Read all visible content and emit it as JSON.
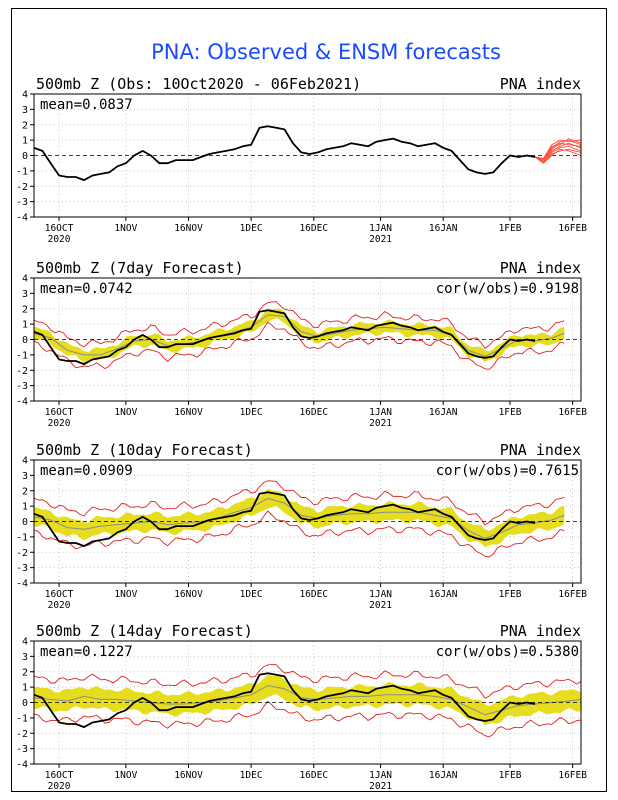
{
  "figure_title": "PNA: Observed & ENSM forecasts",
  "colors": {
    "title": "#1a4cff",
    "observed": "#000000",
    "ensemble_band": "#e6dd1e",
    "ensemble_mean": "#8c8c8c",
    "spread_lines": "#e02020",
    "members": "#ff4a3a",
    "grid": "#b0b0b0"
  },
  "chart_data": [
    {
      "type": "line",
      "title_left": "500mb Z (Obs: 10Oct2020 - 06Feb2021)",
      "title_right": "PNA index",
      "stat_left": "mean=0.0837",
      "stat_right": "",
      "ylim": [
        -4,
        4
      ],
      "yticks": [
        -4,
        -3,
        -2,
        -1,
        0,
        1,
        2,
        3,
        4
      ],
      "x_range_days": [
        0,
        131
      ],
      "xticks": [
        {
          "label": "16OCT",
          "sub": "2020",
          "day": 6
        },
        {
          "label": "1NOV",
          "sub": "",
          "day": 22
        },
        {
          "label": "16NOV",
          "sub": "",
          "day": 37
        },
        {
          "label": "1DEC",
          "sub": "",
          "day": 52
        },
        {
          "label": "16DEC",
          "sub": "",
          "day": 67
        },
        {
          "label": "1JAN",
          "sub": "2021",
          "day": 83
        },
        {
          "label": "16JAN",
          "sub": "",
          "day": 98
        },
        {
          "label": "1FEB",
          "sub": "",
          "day": 114
        },
        {
          "label": "16FEB",
          "sub": "",
          "day": 129
        }
      ],
      "grid": true,
      "series": [
        {
          "role": "observed",
          "values": [
            [
              0,
              0.5
            ],
            [
              2,
              0.3
            ],
            [
              4,
              -0.5
            ],
            [
              6,
              -1.3
            ],
            [
              8,
              -1.4
            ],
            [
              10,
              -1.4
            ],
            [
              12,
              -1.6
            ],
            [
              14,
              -1.3
            ],
            [
              16,
              -1.2
            ],
            [
              18,
              -1.1
            ],
            [
              20,
              -0.7
            ],
            [
              22,
              -0.5
            ],
            [
              24,
              0.0
            ],
            [
              26,
              0.3
            ],
            [
              28,
              0.0
            ],
            [
              30,
              -0.5
            ],
            [
              32,
              -0.5
            ],
            [
              34,
              -0.3
            ],
            [
              36,
              -0.3
            ],
            [
              38,
              -0.3
            ],
            [
              40,
              -0.1
            ],
            [
              42,
              0.1
            ],
            [
              44,
              0.2
            ],
            [
              46,
              0.3
            ],
            [
              48,
              0.4
            ],
            [
              50,
              0.6
            ],
            [
              52,
              0.7
            ],
            [
              54,
              1.8
            ],
            [
              56,
              1.9
            ],
            [
              58,
              1.8
            ],
            [
              60,
              1.7
            ],
            [
              62,
              0.8
            ],
            [
              64,
              0.2
            ],
            [
              66,
              0.1
            ],
            [
              68,
              0.2
            ],
            [
              70,
              0.4
            ],
            [
              72,
              0.5
            ],
            [
              74,
              0.6
            ],
            [
              76,
              0.8
            ],
            [
              78,
              0.7
            ],
            [
              80,
              0.6
            ],
            [
              82,
              0.9
            ],
            [
              84,
              1.0
            ],
            [
              86,
              1.1
            ],
            [
              88,
              0.9
            ],
            [
              90,
              0.8
            ],
            [
              92,
              0.6
            ],
            [
              94,
              0.7
            ],
            [
              96,
              0.8
            ],
            [
              98,
              0.5
            ],
            [
              100,
              0.3
            ],
            [
              102,
              -0.3
            ],
            [
              104,
              -0.9
            ],
            [
              106,
              -1.1
            ],
            [
              108,
              -1.2
            ],
            [
              110,
              -1.1
            ],
            [
              112,
              -0.5
            ],
            [
              114,
              0.0
            ],
            [
              116,
              -0.1
            ],
            [
              118,
              0.0
            ],
            [
              120,
              -0.1
            ]
          ]
        },
        {
          "role": "members",
          "values": [
            [
              [
                120,
                -0.1
              ],
              [
                122,
                -0.4
              ],
              [
                124,
                0.3
              ],
              [
                126,
                0.6
              ],
              [
                128,
                0.8
              ],
              [
                131,
                0.5
              ]
            ],
            [
              [
                120,
                -0.1
              ],
              [
                122,
                -0.2
              ],
              [
                124,
                0.5
              ],
              [
                126,
                0.9
              ],
              [
                128,
                1.0
              ],
              [
                131,
                0.7
              ]
            ],
            [
              [
                120,
                -0.1
              ],
              [
                122,
                -0.5
              ],
              [
                124,
                0.1
              ],
              [
                126,
                0.3
              ],
              [
                128,
                0.4
              ],
              [
                131,
                0.2
              ]
            ],
            [
              [
                120,
                -0.1
              ],
              [
                122,
                -0.3
              ],
              [
                124,
                0.6
              ],
              [
                126,
                0.7
              ],
              [
                128,
                1.1
              ],
              [
                131,
                0.8
              ]
            ],
            [
              [
                120,
                -0.1
              ],
              [
                122,
                -0.4
              ],
              [
                124,
                0.2
              ],
              [
                126,
                0.5
              ],
              [
                128,
                0.6
              ],
              [
                131,
                0.3
              ]
            ],
            [
              [
                120,
                -0.1
              ],
              [
                122,
                -0.2
              ],
              [
                124,
                0.7
              ],
              [
                126,
                1.0
              ],
              [
                128,
                0.9
              ],
              [
                131,
                1.0
              ]
            ],
            [
              [
                120,
                -0.1
              ],
              [
                122,
                -0.5
              ],
              [
                124,
                0.0
              ],
              [
                126,
                0.4
              ],
              [
                128,
                0.3
              ],
              [
                131,
                0.0
              ]
            ],
            [
              [
                120,
                -0.1
              ],
              [
                122,
                -0.3
              ],
              [
                124,
                0.4
              ],
              [
                126,
                0.8
              ],
              [
                128,
                0.7
              ],
              [
                131,
                0.6
              ]
            ]
          ]
        }
      ]
    },
    {
      "type": "line",
      "title_left": "500mb Z (7day Forecast)",
      "title_right": "PNA index",
      "stat_left": "mean=0.0742",
      "stat_right": "cor(w/obs)=0.9198",
      "ylim": [
        -4,
        4
      ],
      "yticks": [
        -4,
        -3,
        -2,
        -1,
        0,
        1,
        2,
        3,
        4
      ],
      "x_range_days": [
        0,
        131
      ],
      "xticks": [
        {
          "label": "16OCT",
          "sub": "2020",
          "day": 6
        },
        {
          "label": "1NOV",
          "sub": "",
          "day": 22
        },
        {
          "label": "16NOV",
          "sub": "",
          "day": 37
        },
        {
          "label": "1DEC",
          "sub": "",
          "day": 52
        },
        {
          "label": "16DEC",
          "sub": "",
          "day": 67
        },
        {
          "label": "1JAN",
          "sub": "2021",
          "day": 83
        },
        {
          "label": "16JAN",
          "sub": "",
          "day": 98
        },
        {
          "label": "1FEB",
          "sub": "",
          "day": 114
        },
        {
          "label": "16FEB",
          "sub": "",
          "day": 129
        }
      ],
      "grid": true,
      "mean_values": [
        [
          0,
          0.4
        ],
        [
          4,
          0.1
        ],
        [
          8,
          -0.7
        ],
        [
          12,
          -1.0
        ],
        [
          16,
          -1.0
        ],
        [
          20,
          -0.6
        ],
        [
          24,
          -0.1
        ],
        [
          28,
          0.0
        ],
        [
          32,
          -0.4
        ],
        [
          36,
          -0.3
        ],
        [
          40,
          -0.1
        ],
        [
          44,
          0.2
        ],
        [
          48,
          0.5
        ],
        [
          52,
          0.8
        ],
        [
          56,
          1.6
        ],
        [
          60,
          1.5
        ],
        [
          64,
          0.5
        ],
        [
          68,
          0.2
        ],
        [
          72,
          0.4
        ],
        [
          76,
          0.6
        ],
        [
          80,
          0.7
        ],
        [
          84,
          0.8
        ],
        [
          88,
          0.7
        ],
        [
          92,
          0.6
        ],
        [
          96,
          0.6
        ],
        [
          100,
          0.3
        ],
        [
          104,
          -0.7
        ],
        [
          108,
          -1.1
        ],
        [
          112,
          -0.6
        ],
        [
          116,
          0.0
        ],
        [
          120,
          -0.1
        ],
        [
          124,
          0.1
        ],
        [
          127,
          0.4
        ]
      ],
      "band_half_width": 0.35,
      "spread_half_width": 0.75,
      "observed_end": 120
    },
    {
      "type": "line",
      "title_left": "500mb Z (10day Forecast)",
      "title_right": "PNA index",
      "stat_left": "mean=0.0909",
      "stat_right": "cor(w/obs)=0.7615",
      "ylim": [
        -4,
        4
      ],
      "yticks": [
        -4,
        -3,
        -2,
        -1,
        0,
        1,
        2,
        3,
        4
      ],
      "x_range_days": [
        0,
        131
      ],
      "xticks": [
        {
          "label": "16OCT",
          "sub": "2020",
          "day": 6
        },
        {
          "label": "1NOV",
          "sub": "",
          "day": 22
        },
        {
          "label": "16NOV",
          "sub": "",
          "day": 37
        },
        {
          "label": "1DEC",
          "sub": "",
          "day": 52
        },
        {
          "label": "16DEC",
          "sub": "",
          "day": 67
        },
        {
          "label": "1JAN",
          "sub": "2021",
          "day": 83
        },
        {
          "label": "16JAN",
          "sub": "",
          "day": 98
        },
        {
          "label": "1FEB",
          "sub": "",
          "day": 114
        },
        {
          "label": "16FEB",
          "sub": "",
          "day": 129
        }
      ],
      "grid": true,
      "mean_values": [
        [
          0,
          0.3
        ],
        [
          4,
          0.1
        ],
        [
          8,
          -0.4
        ],
        [
          12,
          -0.5
        ],
        [
          16,
          -0.3
        ],
        [
          20,
          -0.2
        ],
        [
          24,
          -0.1
        ],
        [
          28,
          0.0
        ],
        [
          32,
          -0.2
        ],
        [
          36,
          -0.1
        ],
        [
          40,
          0.0
        ],
        [
          44,
          0.2
        ],
        [
          48,
          0.6
        ],
        [
          52,
          0.9
        ],
        [
          56,
          1.5
        ],
        [
          60,
          1.2
        ],
        [
          64,
          0.4
        ],
        [
          68,
          0.2
        ],
        [
          72,
          0.4
        ],
        [
          76,
          0.5
        ],
        [
          80,
          0.5
        ],
        [
          84,
          0.6
        ],
        [
          88,
          0.6
        ],
        [
          92,
          0.6
        ],
        [
          96,
          0.4
        ],
        [
          100,
          0.2
        ],
        [
          104,
          -0.6
        ],
        [
          108,
          -1.1
        ],
        [
          112,
          -0.7
        ],
        [
          116,
          -0.2
        ],
        [
          120,
          -0.1
        ],
        [
          124,
          0.1
        ],
        [
          127,
          0.4
        ]
      ],
      "band_half_width": 0.55,
      "spread_half_width": 1.1,
      "observed_end": 120
    },
    {
      "type": "line",
      "title_left": "500mb Z (14day Forecast)",
      "title_right": "PNA index",
      "stat_left": "mean=0.1227",
      "stat_right": "cor(w/obs)=0.5380",
      "ylim": [
        -4,
        4
      ],
      "yticks": [
        -4,
        -3,
        -2,
        -1,
        0,
        1,
        2,
        3,
        4
      ],
      "x_range_days": [
        0,
        131
      ],
      "xticks": [
        {
          "label": "16OCT",
          "sub": "2020",
          "day": 6
        },
        {
          "label": "1NOV",
          "sub": "",
          "day": 22
        },
        {
          "label": "16NOV",
          "sub": "",
          "day": 37
        },
        {
          "label": "1DEC",
          "sub": "",
          "day": 52
        },
        {
          "label": "16DEC",
          "sub": "",
          "day": 67
        },
        {
          "label": "1JAN",
          "sub": "2021",
          "day": 83
        },
        {
          "label": "16JAN",
          "sub": "",
          "day": 98
        },
        {
          "label": "1FEB",
          "sub": "",
          "day": 114
        },
        {
          "label": "16FEB",
          "sub": "",
          "day": 129
        }
      ],
      "grid": true,
      "mean_values": [
        [
          0,
          0.3
        ],
        [
          4,
          0.2
        ],
        [
          8,
          0.1
        ],
        [
          12,
          0.4
        ],
        [
          16,
          0.2
        ],
        [
          20,
          0.2
        ],
        [
          24,
          0.1
        ],
        [
          28,
          0.0
        ],
        [
          32,
          -0.1
        ],
        [
          36,
          -0.1
        ],
        [
          40,
          0.0
        ],
        [
          44,
          0.1
        ],
        [
          48,
          0.3
        ],
        [
          52,
          0.5
        ],
        [
          56,
          1.1
        ],
        [
          60,
          0.9
        ],
        [
          64,
          0.3
        ],
        [
          68,
          0.2
        ],
        [
          72,
          0.3
        ],
        [
          76,
          0.4
        ],
        [
          80,
          0.4
        ],
        [
          84,
          0.5
        ],
        [
          88,
          0.5
        ],
        [
          92,
          0.5
        ],
        [
          96,
          0.4
        ],
        [
          100,
          0.2
        ],
        [
          104,
          -0.3
        ],
        [
          108,
          -0.8
        ],
        [
          112,
          -0.5
        ],
        [
          116,
          -0.2
        ],
        [
          120,
          -0.1
        ],
        [
          124,
          0.0
        ],
        [
          128,
          0.1
        ],
        [
          131,
          0.2
        ]
      ],
      "band_half_width": 0.65,
      "spread_half_width": 1.3,
      "observed_end": 120
    }
  ]
}
